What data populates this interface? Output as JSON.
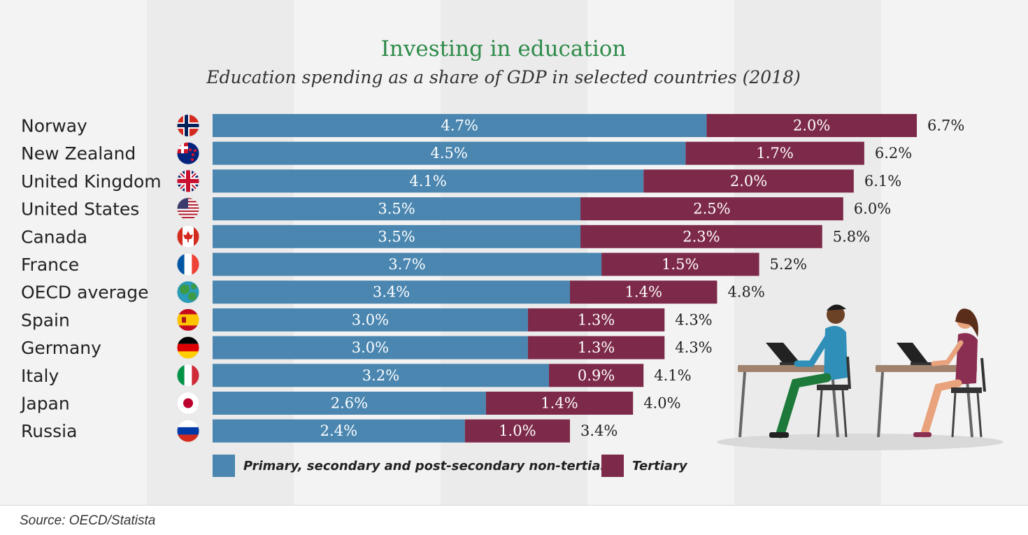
{
  "title": "Investing in education",
  "subtitle": "Education spending as a share of GDP in selected countries (2018)",
  "source": "Source: OECD/Statista",
  "colors": {
    "primary": "#4a86b0",
    "tertiary": "#7d2a4a",
    "title": "#2e8b4a"
  },
  "legend": [
    {
      "label": "Primary, secondary and post-secondary non-tertiary",
      "color": "#4a86b0"
    },
    {
      "label": "Tertiary",
      "color": "#7d2a4a"
    }
  ],
  "chart_data": {
    "type": "bar",
    "orientation": "horizontal",
    "stacked": true,
    "categories": [
      "Norway",
      "New Zealand",
      "United Kingdom",
      "United States",
      "Canada",
      "France",
      "OECD average",
      "Spain",
      "Germany",
      "Italy",
      "Japan",
      "Russia"
    ],
    "flag_icons": [
      "norway-flag-icon",
      "new-zealand-flag-icon",
      "uk-flag-icon",
      "us-flag-icon",
      "canada-flag-icon",
      "france-flag-icon",
      "globe-icon",
      "spain-flag-icon",
      "germany-flag-icon",
      "italy-flag-icon",
      "japan-flag-icon",
      "russia-flag-icon"
    ],
    "series": [
      {
        "name": "Primary, secondary and post-secondary non-tertiary",
        "values": [
          4.7,
          4.5,
          4.1,
          3.5,
          3.5,
          3.7,
          3.4,
          3.0,
          3.0,
          3.2,
          2.6,
          2.4
        ],
        "labels": [
          "4.7%",
          "4.5%",
          "4.1%",
          "3.5%",
          "3.5%",
          "3.7%",
          "3.4%",
          "3.0%",
          "3.0%",
          "3.2%",
          "2.6%",
          "2.4%"
        ]
      },
      {
        "name": "Tertiary",
        "values": [
          2.0,
          1.7,
          2.0,
          2.5,
          2.3,
          1.5,
          1.4,
          1.3,
          1.3,
          0.9,
          1.4,
          1.0
        ],
        "labels": [
          "2.0%",
          "1.7%",
          "2.0%",
          "2.5%",
          "2.3%",
          "1.5%",
          "1.4%",
          "1.3%",
          "1.3%",
          "0.9%",
          "1.4%",
          "1.0%"
        ]
      }
    ],
    "totals": [
      6.7,
      6.2,
      6.1,
      6.0,
      5.8,
      5.2,
      4.8,
      4.3,
      4.3,
      4.1,
      4.0,
      3.4
    ],
    "total_labels": [
      "6.7%",
      "6.2%",
      "6.1%",
      "6.0%",
      "5.8%",
      "5.2%",
      "4.8%",
      "4.3%",
      "4.3%",
      "4.1%",
      "4.0%",
      "3.4%"
    ],
    "xlim": [
      0,
      7
    ],
    "grid": false,
    "legend_position": "bottom"
  }
}
